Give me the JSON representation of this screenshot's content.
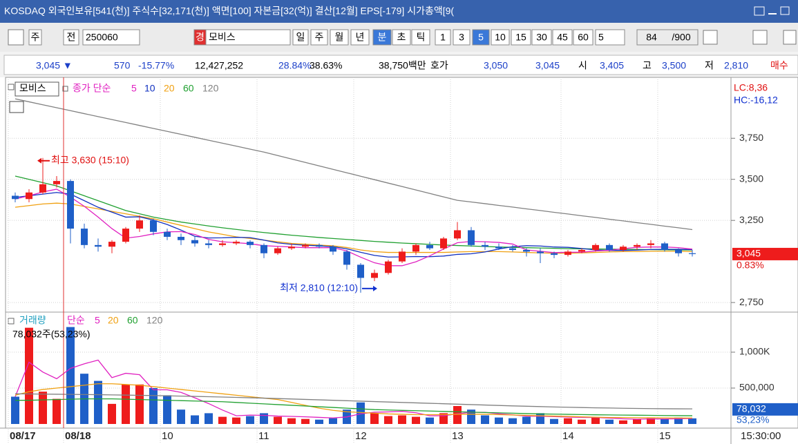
{
  "header": {
    "title": "KOSDAQ 외국인보유[541(천)] 주식수[32,171(천)] 액면[100] 자본금[32(억)] 결산[12월] EPS[-179] 시가총액[9("
  },
  "toolbar": {
    "items": [
      "주",
      "전",
      "250060",
      "경",
      "모비스",
      "일",
      "주",
      "월",
      "년",
      "분",
      "초",
      "틱",
      "1",
      "3",
      "5",
      "10",
      "15",
      "30",
      "45",
      "60",
      "5",
      "84",
      "/900"
    ]
  },
  "info": {
    "items": [
      {
        "text": "3,045 ▼",
        "color": "#1b3fc8"
      },
      {
        "text": "570",
        "color": "#1b3fc8"
      },
      {
        "text": "-15.77%",
        "color": "#1b3fc8"
      },
      {
        "text": "12,427,252",
        "color": "#000000"
      },
      {
        "text": "28.84%",
        "color": "#1b3fc8"
      },
      {
        "text": "38.63%",
        "color": "#000000"
      },
      {
        "text": "38,750백만",
        "color": "#000000"
      },
      {
        "text": "호가",
        "color": "#000000"
      },
      {
        "text": "3,050",
        "color": "#1b3fc8"
      },
      {
        "text": "3,045",
        "color": "#1b3fc8"
      },
      {
        "text": "시",
        "color": "#000000"
      },
      {
        "text": "3,405",
        "color": "#1b3fc8"
      },
      {
        "text": "고",
        "color": "#000000"
      },
      {
        "text": "3,500",
        "color": "#1b3fc8"
      },
      {
        "text": "저",
        "color": "#000000"
      },
      {
        "text": "2,810",
        "color": "#1b3fc8"
      },
      {
        "text": "매수",
        "color": "#e01010"
      }
    ]
  },
  "chart_data": [
    {
      "type": "candlestick",
      "legend_title": "모비스",
      "ma_label": "종가 단순",
      "ma_label_color": "#e020c0",
      "up_color": "#ee1c1c",
      "down_color": "#1f5fc8",
      "ylim": [
        2700,
        4100
      ],
      "yticks": [
        {
          "value": 3750,
          "label": "3,750"
        },
        {
          "value": 3500,
          "label": "3,500"
        },
        {
          "value": 3250,
          "label": "3,250"
        },
        {
          "value": 2750,
          "label": "2,750"
        }
      ],
      "ohlc": [
        [
          3400,
          3420,
          3360,
          3380
        ],
        [
          3380,
          3440,
          3360,
          3420
        ],
        [
          3420,
          3630,
          3410,
          3470
        ],
        [
          3470,
          3520,
          3450,
          3490
        ],
        [
          3490,
          3500,
          3110,
          3200
        ],
        [
          3200,
          3230,
          3080,
          3100
        ],
        [
          3100,
          3140,
          3060,
          3090
        ],
        [
          3090,
          3130,
          3050,
          3120
        ],
        [
          3120,
          3210,
          3110,
          3200
        ],
        [
          3200,
          3280,
          3180,
          3250
        ],
        [
          3250,
          3260,
          3160,
          3180
        ],
        [
          3180,
          3200,
          3130,
          3150
        ],
        [
          3150,
          3170,
          3100,
          3130
        ],
        [
          3130,
          3150,
          3090,
          3110
        ],
        [
          3110,
          3130,
          3080,
          3100
        ],
        [
          3100,
          3130,
          3090,
          3110
        ],
        [
          3110,
          3130,
          3100,
          3120
        ],
        [
          3120,
          3130,
          3080,
          3100
        ],
        [
          3100,
          3110,
          3020,
          3050
        ],
        [
          3050,
          3090,
          3040,
          3080
        ],
        [
          3080,
          3110,
          3070,
          3090
        ],
        [
          3090,
          3110,
          3080,
          3100
        ],
        [
          3100,
          3110,
          3080,
          3090
        ],
        [
          3090,
          3100,
          3040,
          3060
        ],
        [
          3060,
          3070,
          2950,
          2980
        ],
        [
          2980,
          2990,
          2810,
          2900
        ],
        [
          2900,
          2950,
          2880,
          2930
        ],
        [
          2930,
          3010,
          2920,
          3000
        ],
        [
          3000,
          3080,
          2990,
          3060
        ],
        [
          3060,
          3110,
          3040,
          3100
        ],
        [
          3100,
          3120,
          3070,
          3080
        ],
        [
          3080,
          3150,
          3070,
          3140
        ],
        [
          3140,
          3240,
          3130,
          3190
        ],
        [
          3190,
          3210,
          3090,
          3100
        ],
        [
          3100,
          3120,
          3070,
          3090
        ],
        [
          3090,
          3110,
          3070,
          3080
        ],
        [
          3080,
          3100,
          3060,
          3070
        ],
        [
          3070,
          3080,
          3030,
          3060
        ],
        [
          3060,
          3080,
          2990,
          3050
        ],
        [
          3050,
          3060,
          3020,
          3040
        ],
        [
          3040,
          3070,
          3030,
          3060
        ],
        [
          3060,
          3080,
          3050,
          3070
        ],
        [
          3070,
          3110,
          3060,
          3100
        ],
        [
          3100,
          3110,
          3060,
          3070
        ],
        [
          3070,
          3100,
          3060,
          3090
        ],
        [
          3090,
          3110,
          3070,
          3100
        ],
        [
          3100,
          3130,
          3080,
          3110
        ],
        [
          3110,
          3120,
          3060,
          3070
        ],
        [
          3070,
          3080,
          3030,
          3050
        ],
        [
          3050,
          3070,
          3030,
          3045
        ]
      ],
      "series": [
        {
          "name": "5",
          "color": "#e020c0",
          "values": [
            3380,
            3400,
            3423,
            3440,
            3392,
            3336,
            3270,
            3200,
            3142,
            3152,
            3168,
            3180,
            3182,
            3164,
            3134,
            3120,
            3114,
            3108,
            3096,
            3092,
            3088,
            3084,
            3084,
            3084,
            3064,
            3026,
            2992,
            2974,
            2974,
            2998,
            3034,
            3076,
            3114,
            3122,
            3120,
            3116,
            3106,
            3070,
            3062,
            3054,
            3056,
            3056,
            3064,
            3068,
            3078,
            3086,
            3088,
            3088,
            3084,
            3075
          ]
        },
        {
          "name": "10",
          "color": "#1030c0",
          "values": [
            3390,
            3400,
            3410,
            3420,
            3410,
            3370,
            3330,
            3300,
            3270,
            3272,
            3252,
            3225,
            3191,
            3153,
            3143,
            3144,
            3147,
            3145,
            3130,
            3113,
            3104,
            3099,
            3095,
            3090,
            3077,
            3056,
            3037,
            3027,
            3028,
            3030,
            3029,
            3033,
            3043,
            3047,
            3058,
            3076,
            3090,
            3096,
            3094,
            3088,
            3086,
            3079,
            3070,
            3067,
            3067,
            3069,
            3073,
            3074,
            3074,
            3072
          ]
        },
        {
          "name": "20",
          "color": "#f0a010",
          "values": [
            3330,
            3340,
            3350,
            3355,
            3350,
            3335,
            3320,
            3305,
            3290,
            3275,
            3260,
            3240,
            3220,
            3200,
            3180,
            3165,
            3150,
            3140,
            3130,
            3120,
            3110,
            3105,
            3100,
            3095,
            3085,
            3070,
            3060,
            3055,
            3055,
            3055,
            3055,
            3055,
            3058,
            3060,
            3060,
            3060,
            3058,
            3055,
            3052,
            3050,
            3050,
            3052,
            3055,
            3058,
            3060,
            3060,
            3062,
            3062,
            3062,
            3060
          ]
        },
        {
          "name": "60",
          "color": "#20a030",
          "values": [
            3520,
            3500,
            3480,
            3460,
            3430,
            3400,
            3370,
            3340,
            3310,
            3290,
            3270,
            3255,
            3240,
            3228,
            3216,
            3205,
            3195,
            3185,
            3176,
            3168,
            3160,
            3153,
            3146,
            3140,
            3134,
            3128,
            3122,
            3117,
            3112,
            3108,
            3104,
            3100,
            3097,
            3094,
            3091,
            3088,
            3086,
            3084,
            3082,
            3080,
            3078,
            3077,
            3076,
            3075,
            3074,
            3073,
            3072,
            3071,
            3070,
            3070
          ]
        },
        {
          "name": "120",
          "color": "#808080",
          "values": [
            3990,
            3972,
            3954,
            3936,
            3918,
            3900,
            3882,
            3864,
            3846,
            3828,
            3810,
            3792,
            3774,
            3756,
            3738,
            3720,
            3702,
            3684,
            3666,
            3645,
            3624,
            3603,
            3582,
            3561,
            3540,
            3519,
            3498,
            3477,
            3456,
            3435,
            3414,
            3393,
            3372,
            3362,
            3352,
            3341,
            3331,
            3320,
            3310,
            3299,
            3289,
            3278,
            3268,
            3257,
            3247,
            3236,
            3226,
            3215,
            3205,
            3194
          ]
        }
      ],
      "annotations": [
        {
          "text": "최고 3,630 (15:10)",
          "color": "#e01010"
        },
        {
          "text": "최저 2,810 (12:10)",
          "color": "#1030d0"
        }
      ],
      "lc": "LC:8,36",
      "hc": "HC:-16,12",
      "last_price": {
        "value": 3045,
        "label": "3,045"
      },
      "last_change": "0.83%"
    },
    {
      "type": "bar",
      "legend_title": "거래량",
      "legend_title_color": "#20a0c0",
      "ma_label": "단순",
      "info_label": "78,032주(53,23%)",
      "ylim": [
        0,
        1500000
      ],
      "yticks": [
        {
          "value": 1000000,
          "label": "1,000K"
        },
        {
          "value": 500000,
          "label": "500,000"
        }
      ],
      "categories": [
        "08/17",
        null,
        null,
        null,
        "08/18",
        null,
        null,
        null,
        null,
        null,
        null,
        "10",
        null,
        null,
        null,
        null,
        null,
        null,
        "11",
        null,
        null,
        null,
        null,
        null,
        null,
        "12",
        null,
        null,
        null,
        null,
        null,
        null,
        "13",
        null,
        null,
        null,
        null,
        null,
        null,
        null,
        "14",
        null,
        null,
        null,
        null,
        null,
        null,
        "15",
        null,
        null
      ],
      "values": [
        380000,
        1340000,
        450000,
        350000,
        1350000,
        700000,
        600000,
        280000,
        550000,
        550000,
        500000,
        400000,
        200000,
        120000,
        150000,
        100000,
        90000,
        110000,
        150000,
        100000,
        80000,
        70000,
        60000,
        80000,
        200000,
        300000,
        150000,
        110000,
        120000,
        100000,
        90000,
        150000,
        250000,
        200000,
        120000,
        90000,
        80000,
        100000,
        150000,
        70000,
        80000,
        60000,
        90000,
        60000,
        50000,
        70000,
        80000,
        70000,
        90000,
        78032
      ],
      "series": [
        {
          "name": "5",
          "color": "#e020c0",
          "values": [
            380000,
            860000,
            723000,
            630000,
            774000,
            838000,
            890000,
            646000,
            706000,
            686000,
            476000,
            476000,
            440000,
            364000,
            284000,
            194000,
            114000,
            124000,
            120000,
            110000,
            106000,
            100000,
            92000,
            84000,
            98000,
            142000,
            164000,
            168000,
            176000,
            156000,
            114000,
            114000,
            142000,
            162000,
            162000,
            142000,
            128000,
            108000,
            108000,
            102000,
            96000,
            92000,
            90000,
            82000,
            72000,
            66000,
            71000,
            70000,
            72000,
            77000
          ]
        },
        {
          "name": "20",
          "color": "#f0a010",
          "values": [
            400000,
            450000,
            480000,
            500000,
            520000,
            540000,
            560000,
            560000,
            550000,
            540000,
            520000,
            500000,
            480000,
            460000,
            440000,
            420000,
            400000,
            380000,
            360000,
            340000,
            300000,
            260000,
            220000,
            190000,
            170000,
            160000,
            150000,
            140000,
            135000,
            130000,
            130000,
            130000,
            135000,
            135000,
            135000,
            130000,
            125000,
            120000,
            115000,
            110000,
            105000,
            100000,
            95000,
            90000,
            90000,
            88000,
            86000,
            85000,
            84000,
            83000
          ]
        },
        {
          "name": "60",
          "color": "#20a030",
          "values": [
            330000,
            330000,
            335000,
            340000,
            345000,
            350000,
            350000,
            350000,
            345000,
            340000,
            335000,
            330000,
            325000,
            320000,
            315000,
            310000,
            300000,
            290000,
            280000,
            270000,
            260000,
            250000,
            240000,
            230000,
            220000,
            210000,
            200000,
            195000,
            190000,
            185000,
            180000,
            175000,
            170000,
            165000,
            160000,
            155000,
            150000,
            145000,
            140000,
            137000,
            134000,
            131000,
            128000,
            126000,
            124000,
            122000,
            120000,
            118000,
            116000,
            115000
          ]
        },
        {
          "name": "120",
          "color": "#808080",
          "values": [
            420000,
            418000,
            416000,
            414000,
            412000,
            410000,
            408000,
            405000,
            402000,
            399000,
            396000,
            392000,
            388000,
            384000,
            380000,
            375000,
            370000,
            365000,
            360000,
            354000,
            348000,
            342000,
            336000,
            330000,
            324000,
            318000,
            312000,
            306000,
            300000,
            294000,
            288000,
            282000,
            276000,
            270000,
            264000,
            258000,
            252000,
            247000,
            242000,
            237000,
            233000,
            229000,
            225000,
            222000,
            219000,
            216000,
            214000,
            212000,
            211000,
            210000
          ]
        }
      ],
      "last_value": {
        "value": 78032,
        "label": "78,032"
      },
      "last_ratio": "53,23%",
      "time_label": "15:30:00"
    }
  ]
}
